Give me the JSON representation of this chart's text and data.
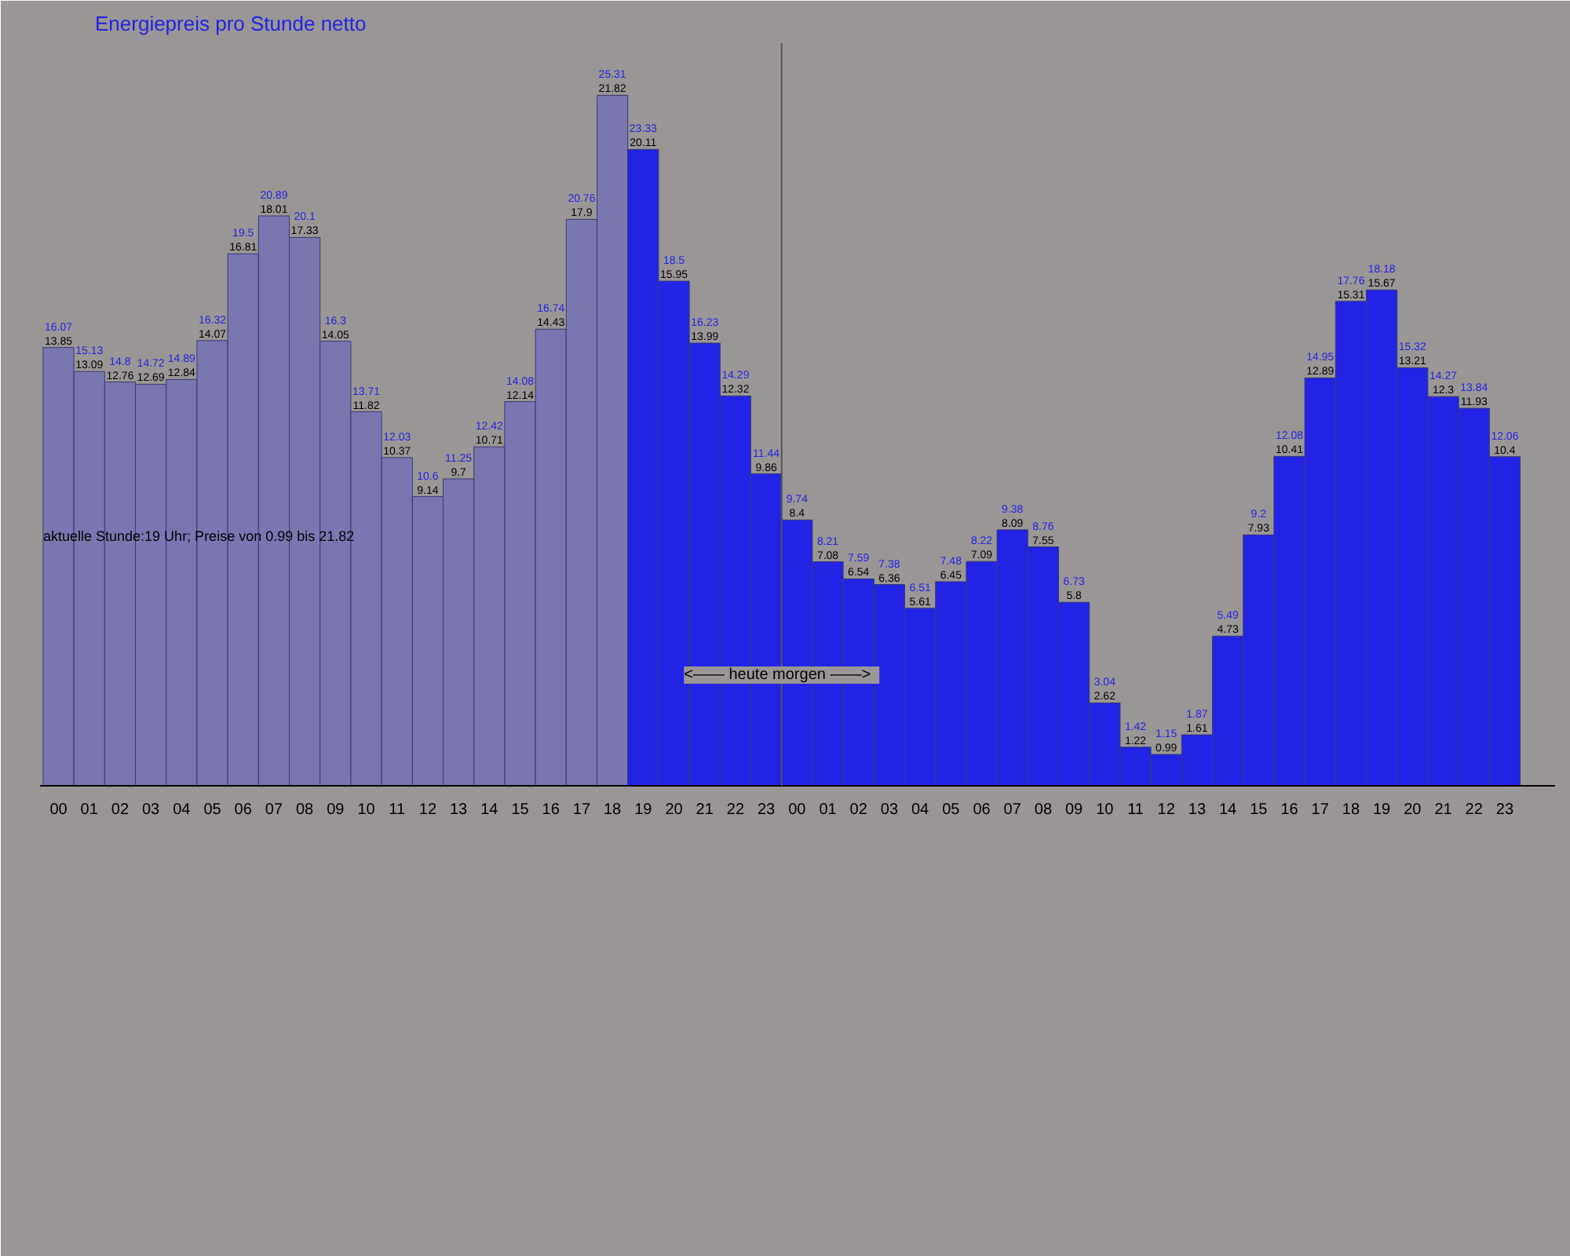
{
  "chart_data": {
    "type": "bar",
    "title": "Energiepreis pro Stunde netto",
    "categories": [
      "00",
      "01",
      "02",
      "03",
      "04",
      "05",
      "06",
      "07",
      "08",
      "09",
      "10",
      "11",
      "12",
      "13",
      "14",
      "15",
      "16",
      "17",
      "18",
      "19",
      "20",
      "21",
      "22",
      "23",
      "00",
      "01",
      "02",
      "03",
      "04",
      "05",
      "06",
      "07",
      "08",
      "09",
      "10",
      "11",
      "12",
      "13",
      "14",
      "15",
      "16",
      "17",
      "18",
      "19",
      "20",
      "21",
      "22",
      "23"
    ],
    "values": [
      13.85,
      13.09,
      12.76,
      12.69,
      12.84,
      14.07,
      16.81,
      18.01,
      17.33,
      14.05,
      11.82,
      10.37,
      9.14,
      9.7,
      10.71,
      12.14,
      14.43,
      17.9,
      21.82,
      20.11,
      15.95,
      13.99,
      12.32,
      9.86,
      8.4,
      7.08,
      6.54,
      6.36,
      5.61,
      6.45,
      7.09,
      8.09,
      7.55,
      5.8,
      2.62,
      1.22,
      0.99,
      1.61,
      4.73,
      7.93,
      10.41,
      12.89,
      15.31,
      15.67,
      13.21,
      12.3,
      11.93,
      10.4
    ],
    "colors": [
      "#7a76b0",
      "#7a76b0",
      "#7a76b0",
      "#7a76b0",
      "#7a76b0",
      "#7a76b0",
      "#7a76b0",
      "#7a76b0",
      "#7a76b0",
      "#7a76b0",
      "#7a76b0",
      "#7a76b0",
      "#7a76b0",
      "#7a76b0",
      "#7a76b0",
      "#7a76b0",
      "#7a76b0",
      "#7a76b0",
      "#7a76b0",
      "#2323e6",
      "#2323e6",
      "#2323e6",
      "#2323e6",
      "#2323e6",
      "#2323e6",
      "#2323e6",
      "#2323e6",
      "#2323e6",
      "#2323e6",
      "#2323e6",
      "#2323e6",
      "#2323e6",
      "#2323e6",
      "#2323e6",
      "#2323e6",
      "#2323e6",
      "#2323e6",
      "#2323e6",
      "#2323e6",
      "#2323e6",
      "#2323e6",
      "#2323e6",
      "#2323e6",
      "#2323e6",
      "#2323e6",
      "#2323e6",
      "#2323e6",
      "#2323e6"
    ],
    "data_labels": true,
    "grid": false,
    "tick_labels": "x",
    "annotations": [
      "aktuelle Stunde:19 Uhr; Preise von 0.99 bis 21.82",
      "<—— heute   morgen ——>",
      "16.07",
      "15.13",
      "14.8",
      "14.72",
      "14.89",
      "16.32",
      "19.5",
      "20.89",
      "20.1",
      "16.3",
      "13.71",
      "12.03",
      "10.6",
      "11.25",
      "12.42",
      "14.08",
      "16.74",
      "20.76",
      "25.31",
      "23.33",
      "18.5",
      "16.23",
      "14.29",
      "11.44",
      "9.74",
      "8.21",
      "7.59",
      "7.38",
      "6.51",
      "7.48",
      "8.22",
      "9.38",
      "8.76",
      "6.73",
      "3.04",
      "1.42",
      "1.15",
      "1.87",
      "5.49",
      "9.2",
      "12.08",
      "14.95",
      "17.76",
      "18.18",
      "15.32",
      "14.27",
      "13.84",
      "12.06"
    ]
  }
}
